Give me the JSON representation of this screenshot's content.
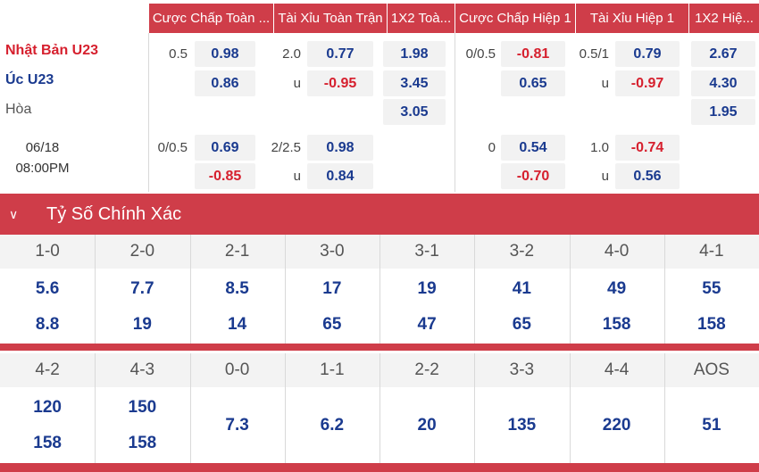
{
  "headers": [
    "Cược Chấp Toàn ...",
    "Tài Xỉu Toàn Trận",
    "1X2 Toà...",
    "Cược Chấp Hiệp 1",
    "Tài Xỉu Hiệp 1",
    "1X2 Hiệ..."
  ],
  "match": {
    "home": "Nhật Bản U23",
    "away": "Úc U23",
    "draw": "Hòa",
    "date": "06/18",
    "time": "08:00PM"
  },
  "row1": {
    "hcp_line": "0.5",
    "hcp_home": "0.98",
    "hcp_away": "0.86",
    "ou_line": "2.0",
    "ou_over": "0.77",
    "ou_u": "u",
    "ou_under": "-0.95",
    "x12_home": "1.98",
    "x12_away": "3.45",
    "x12_draw": "3.05",
    "h1_hcp_line": "0/0.5",
    "h1_hcp_home": "-0.81",
    "h1_hcp_away": "0.65",
    "h1_ou_line": "0.5/1",
    "h1_ou_over": "0.79",
    "h1_ou_u": "u",
    "h1_ou_under": "-0.97",
    "h1_x12_home": "2.67",
    "h1_x12_away": "4.30",
    "h1_x12_draw": "1.95"
  },
  "row2": {
    "hcp_line": "0/0.5",
    "hcp_home": "0.69",
    "hcp_away": "-0.85",
    "ou_line": "2/2.5",
    "ou_over": "0.98",
    "ou_u": "u",
    "ou_under": "0.84",
    "h1_hcp_line": "0",
    "h1_hcp_home": "0.54",
    "h1_hcp_away": "-0.70",
    "h1_ou_line": "1.0",
    "h1_ou_over": "-0.74",
    "h1_ou_u": "u",
    "h1_ou_under": "0.56"
  },
  "section": {
    "chevron_icon": "chevron-down-icon",
    "title": "Tỷ Số Chính Xác"
  },
  "scores_row1": {
    "labels": [
      "1-0",
      "2-0",
      "2-1",
      "3-0",
      "3-1",
      "3-2",
      "4-0",
      "4-1"
    ],
    "top": [
      "5.6",
      "7.7",
      "8.5",
      "17",
      "19",
      "41",
      "49",
      "55"
    ],
    "bottom": [
      "8.8",
      "19",
      "14",
      "65",
      "47",
      "65",
      "158",
      "158"
    ]
  },
  "scores_row2": {
    "labels": [
      "4-2",
      "4-3",
      "0-0",
      "1-1",
      "2-2",
      "3-3",
      "4-4",
      "AOS"
    ],
    "top": [
      "120",
      "150"
    ],
    "bottom": [
      "158",
      "158"
    ],
    "single": [
      "7.3",
      "6.2",
      "20",
      "135",
      "220",
      "51"
    ]
  },
  "colors": {
    "header_bg": "#cf3d49",
    "home_team": "#d6202e",
    "odds_blue": "#1a3a8f",
    "odds_red": "#d6202e"
  }
}
